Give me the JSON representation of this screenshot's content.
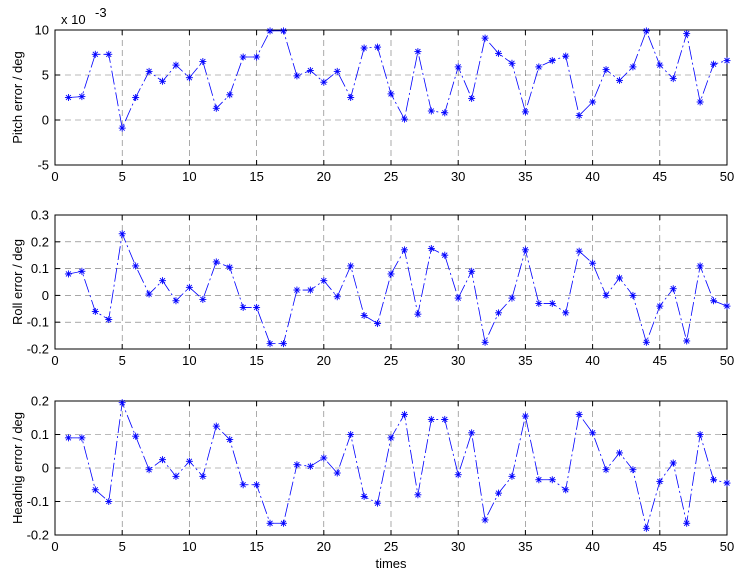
{
  "chart_data": [
    {
      "type": "line",
      "ylabel": "Pitch error / deg",
      "xlabel": "",
      "exponent_label": "x 10",
      "exponent_power": "-3",
      "xlim": [
        0,
        50
      ],
      "ylim": [
        -5,
        10
      ],
      "xticks": [
        0,
        5,
        10,
        15,
        20,
        25,
        30,
        35,
        40,
        45,
        50
      ],
      "yticks": [
        -5,
        0,
        5,
        10
      ],
      "grid": true,
      "marker": "asterisk",
      "line_style": "dashdot",
      "color": "#0000ff",
      "x": [
        1,
        2,
        3,
        4,
        5,
        6,
        7,
        8,
        9,
        10,
        11,
        12,
        13,
        14,
        15,
        16,
        17,
        18,
        19,
        20,
        21,
        22,
        23,
        24,
        25,
        26,
        27,
        28,
        29,
        30,
        31,
        32,
        33,
        34,
        35,
        36,
        37,
        38,
        39,
        40,
        41,
        42,
        43,
        44,
        45,
        46,
        47,
        48,
        49,
        50
      ],
      "y": [
        2.5,
        2.6,
        7.3,
        7.3,
        -0.9,
        2.5,
        5.4,
        4.3,
        6.1,
        4.7,
        6.5,
        1.3,
        2.8,
        7.0,
        7.0,
        9.9,
        9.9,
        4.9,
        5.5,
        4.2,
        5.4,
        2.5,
        8.0,
        8.1,
        2.9,
        0.1,
        7.6,
        1.0,
        0.8,
        5.9,
        2.4,
        9.1,
        7.4,
        6.3,
        0.9,
        5.9,
        6.6,
        7.1,
        0.5,
        2.0,
        5.6,
        4.4,
        5.9,
        9.9,
        6.1,
        4.6,
        9.6,
        2.0,
        6.2,
        6.6
      ]
    },
    {
      "type": "line",
      "ylabel": "Roll error / deg",
      "xlabel": "",
      "xlim": [
        0,
        50
      ],
      "ylim": [
        -0.2,
        0.3
      ],
      "xticks": [
        0,
        5,
        10,
        15,
        20,
        25,
        30,
        35,
        40,
        45,
        50
      ],
      "yticks": [
        -0.2,
        -0.1,
        0,
        0.1,
        0.2,
        0.3
      ],
      "grid": true,
      "marker": "asterisk",
      "line_style": "dashdot",
      "color": "#0000ff",
      "x": [
        1,
        2,
        3,
        4,
        5,
        6,
        7,
        8,
        9,
        10,
        11,
        12,
        13,
        14,
        15,
        16,
        17,
        18,
        19,
        20,
        21,
        22,
        23,
        24,
        25,
        26,
        27,
        28,
        29,
        30,
        31,
        32,
        33,
        34,
        35,
        36,
        37,
        38,
        39,
        40,
        41,
        42,
        43,
        44,
        45,
        46,
        47,
        48,
        49,
        50
      ],
      "y": [
        0.08,
        0.09,
        -0.06,
        -0.09,
        0.23,
        0.11,
        0.005,
        0.055,
        -0.02,
        0.03,
        -0.015,
        0.125,
        0.105,
        -0.045,
        -0.045,
        -0.18,
        -0.18,
        0.02,
        0.02,
        0.055,
        -0.005,
        0.11,
        -0.075,
        -0.105,
        0.08,
        0.17,
        -0.07,
        0.175,
        0.15,
        -0.01,
        0.09,
        -0.175,
        -0.065,
        -0.01,
        0.17,
        -0.03,
        -0.03,
        -0.065,
        0.165,
        0.12,
        0.0,
        0.065,
        0.0,
        -0.175,
        -0.04,
        0.025,
        -0.17,
        0.11,
        -0.02,
        -0.04
      ]
    },
    {
      "type": "line",
      "ylabel": "Headnig error / deg",
      "xlabel": "times",
      "xlim": [
        0,
        50
      ],
      "ylim": [
        -0.2,
        0.2
      ],
      "xticks": [
        0,
        5,
        10,
        15,
        20,
        25,
        30,
        35,
        40,
        45,
        50
      ],
      "yticks": [
        -0.2,
        -0.1,
        0,
        0.1,
        0.2
      ],
      "grid": true,
      "marker": "asterisk",
      "line_style": "dashdot",
      "color": "#0000ff",
      "x": [
        1,
        2,
        3,
        4,
        5,
        6,
        7,
        8,
        9,
        10,
        11,
        12,
        13,
        14,
        15,
        16,
        17,
        18,
        19,
        20,
        21,
        22,
        23,
        24,
        25,
        26,
        27,
        28,
        29,
        30,
        31,
        32,
        33,
        34,
        35,
        36,
        37,
        38,
        39,
        40,
        41,
        42,
        43,
        44,
        45,
        46,
        47,
        48,
        49,
        50
      ],
      "y": [
        0.09,
        0.09,
        -0.065,
        -0.1,
        0.195,
        0.095,
        -0.005,
        0.025,
        -0.025,
        0.02,
        -0.025,
        0.125,
        0.085,
        -0.05,
        -0.05,
        -0.165,
        -0.165,
        0.01,
        0.005,
        0.03,
        -0.015,
        0.1,
        -0.085,
        -0.105,
        0.09,
        0.16,
        -0.08,
        0.145,
        0.145,
        -0.02,
        0.105,
        -0.155,
        -0.075,
        -0.025,
        0.155,
        -0.035,
        -0.035,
        -0.065,
        0.16,
        0.105,
        -0.005,
        0.045,
        -0.005,
        -0.18,
        -0.04,
        0.015,
        -0.165,
        0.1,
        -0.035,
        -0.045
      ]
    }
  ]
}
